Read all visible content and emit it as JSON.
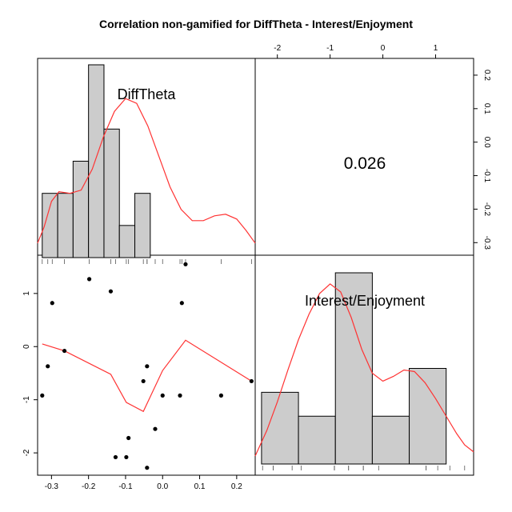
{
  "chart_data": {
    "type": "scatter-matrix",
    "title": "Correlation non-gamified for DiffTheta - Interest/Enjoyment",
    "variables": [
      "DiffTheta",
      "Interest/Enjoyment"
    ],
    "correlation": "0.026",
    "colors": {
      "hist_fill": "#cccccc",
      "density": "#ff3333",
      "smooth": "#ff3333",
      "points": "#000000",
      "frame": "#000000"
    },
    "x_axis": {
      "ticks": [
        -0.3,
        -0.2,
        -0.1,
        0.0,
        0.1,
        0.2
      ],
      "tick_labels": [
        "-0.3",
        "-0.2",
        "-0.1",
        "0.0",
        "0.1",
        "0.2"
      ],
      "range": [
        -0.3375,
        0.25
      ]
    },
    "y_axis": {
      "ticks": [
        -2,
        -1,
        0,
        1
      ],
      "tick_labels": [
        "-2",
        "-1",
        "0",
        "1"
      ],
      "range": [
        -2.42,
        1.72
      ]
    },
    "top_axis": {
      "ticks": [
        -2,
        -1,
        0,
        1
      ],
      "tick_labels": [
        "-2",
        "-1",
        "0",
        "1"
      ],
      "range": [
        -2.42,
        1.72
      ]
    },
    "right_axis": {
      "ticks": [
        -0.3,
        -0.2,
        -0.1,
        0.0,
        0.1,
        0.2
      ],
      "tick_labels": [
        "-0.3",
        "-0.2",
        "-0.1",
        "0.0",
        "0.1",
        "0.2"
      ],
      "range": [
        -0.3375,
        0.25
      ]
    },
    "points": [
      {
        "x": -0.325,
        "y": -0.92
      },
      {
        "x": -0.31,
        "y": -0.37
      },
      {
        "x": -0.298,
        "y": 0.82
      },
      {
        "x": -0.265,
        "y": -0.08
      },
      {
        "x": -0.198,
        "y": 1.27
      },
      {
        "x": -0.14,
        "y": 1.04
      },
      {
        "x": -0.127,
        "y": -2.08
      },
      {
        "x": -0.098,
        "y": -2.08
      },
      {
        "x": -0.092,
        "y": -1.72
      },
      {
        "x": -0.052,
        "y": -0.65
      },
      {
        "x": -0.042,
        "y": -2.28
      },
      {
        "x": -0.042,
        "y": -0.37
      },
      {
        "x": -0.02,
        "y": -1.55
      },
      {
        "x": 0.0,
        "y": -0.92
      },
      {
        "x": 0.047,
        "y": -0.92
      },
      {
        "x": 0.052,
        "y": 0.82
      },
      {
        "x": 0.062,
        "y": 1.55
      },
      {
        "x": 0.158,
        "y": -0.92
      },
      {
        "x": 0.24,
        "y": -0.65
      }
    ],
    "smooth_line": [
      {
        "x": -0.325,
        "y": 0.05
      },
      {
        "x": -0.265,
        "y": -0.08
      },
      {
        "x": -0.14,
        "y": -0.52
      },
      {
        "x": -0.098,
        "y": -1.05
      },
      {
        "x": -0.052,
        "y": -1.22
      },
      {
        "x": 0.0,
        "y": -0.45
      },
      {
        "x": 0.062,
        "y": 0.12
      },
      {
        "x": 0.24,
        "y": -0.65
      }
    ],
    "hist_x": {
      "breaks": [
        -0.325,
        -0.2833,
        -0.2417,
        -0.2,
        -0.1583,
        -0.1167,
        -0.075,
        -0.0333
      ],
      "counts": [
        2,
        2,
        3,
        6,
        4,
        1,
        2
      ],
      "density": [
        {
          "x": -0.3375,
          "y": 0.45
        },
        {
          "x": -0.32,
          "y": 0.95
        },
        {
          "x": -0.3,
          "y": 1.75
        },
        {
          "x": -0.28,
          "y": 2.05
        },
        {
          "x": -0.25,
          "y": 2.0
        },
        {
          "x": -0.22,
          "y": 2.1
        },
        {
          "x": -0.19,
          "y": 2.75
        },
        {
          "x": -0.16,
          "y": 3.75
        },
        {
          "x": -0.13,
          "y": 4.55
        },
        {
          "x": -0.1,
          "y": 4.95
        },
        {
          "x": -0.07,
          "y": 4.8
        },
        {
          "x": -0.04,
          "y": 4.1
        },
        {
          "x": -0.01,
          "y": 3.15
        },
        {
          "x": 0.02,
          "y": 2.2
        },
        {
          "x": 0.05,
          "y": 1.5
        },
        {
          "x": 0.08,
          "y": 1.15
        },
        {
          "x": 0.11,
          "y": 1.15
        },
        {
          "x": 0.14,
          "y": 1.3
        },
        {
          "x": 0.17,
          "y": 1.35
        },
        {
          "x": 0.2,
          "y": 1.2
        },
        {
          "x": 0.225,
          "y": 0.85
        },
        {
          "x": 0.25,
          "y": 0.45
        }
      ]
    },
    "hist_y": {
      "breaks": [
        -2.3,
        -1.6,
        -0.9,
        -0.2,
        0.5,
        1.2
      ],
      "counts": [
        3,
        2,
        8,
        2,
        4
      ],
      "density": [
        {
          "x": -2.42,
          "y": 0.25
        },
        {
          "x": -2.2,
          "y": 1.05
        },
        {
          "x": -2.0,
          "y": 1.95
        },
        {
          "x": -1.8,
          "y": 2.95
        },
        {
          "x": -1.6,
          "y": 3.9
        },
        {
          "x": -1.4,
          "y": 4.7
        },
        {
          "x": -1.2,
          "y": 5.35
        },
        {
          "x": -1.0,
          "y": 5.65
        },
        {
          "x": -0.8,
          "y": 5.4
        },
        {
          "x": -0.6,
          "y": 4.6
        },
        {
          "x": -0.4,
          "y": 3.6
        },
        {
          "x": -0.2,
          "y": 2.85
        },
        {
          "x": 0.0,
          "y": 2.6
        },
        {
          "x": 0.2,
          "y": 2.75
        },
        {
          "x": 0.4,
          "y": 2.95
        },
        {
          "x": 0.6,
          "y": 2.9
        },
        {
          "x": 0.8,
          "y": 2.55
        },
        {
          "x": 1.0,
          "y": 2.05
        },
        {
          "x": 1.2,
          "y": 1.5
        },
        {
          "x": 1.4,
          "y": 0.95
        },
        {
          "x": 1.55,
          "y": 0.6
        },
        {
          "x": 1.72,
          "y": 0.38
        }
      ]
    }
  }
}
